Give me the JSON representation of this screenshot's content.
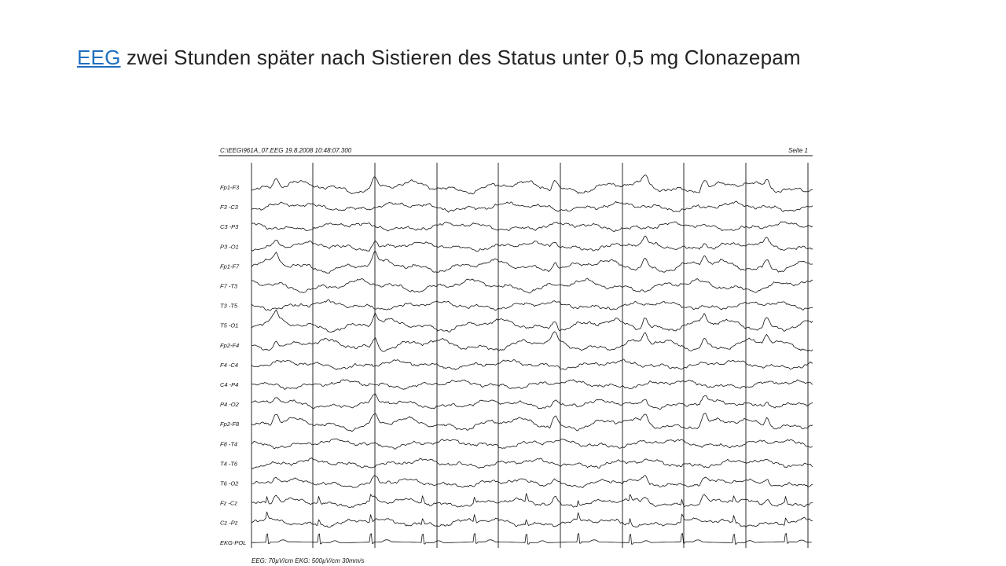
{
  "slide": {
    "link_text": "EEG",
    "title_text": " zwei Stunden später nach Sistieren des Status unter 0,5 mg Clonazepam"
  },
  "eeg": {
    "header_left": "C:\\EEG\\961A_07.EEG  19.8.2008  10:48:07.300",
    "header_right": "Seite 1",
    "footer": "EEG: 70µV/cm  EKG: 500µV/cm   30mm/s",
    "channels": [
      {
        "label": "Fp1-F3"
      },
      {
        "label": "F3 -C3"
      },
      {
        "label": "C3 -P3"
      },
      {
        "label": "P3 -O1"
      },
      {
        "label": "Fp1-F7"
      },
      {
        "label": "F7 -T3"
      },
      {
        "label": "T3 -T5"
      },
      {
        "label": "T5 -O1"
      },
      {
        "label": "Fp2-F4"
      },
      {
        "label": "F4 -C4"
      },
      {
        "label": "C4 -P4"
      },
      {
        "label": "P4 -O2"
      },
      {
        "label": "Fp2-F8"
      },
      {
        "label": "F8 -T4"
      },
      {
        "label": "T4 -T6"
      },
      {
        "label": "T6 -O2"
      },
      {
        "label": "Fz -Cz"
      },
      {
        "label": "Cz -Pz"
      },
      {
        "label": "EKG-POL"
      }
    ]
  }
}
